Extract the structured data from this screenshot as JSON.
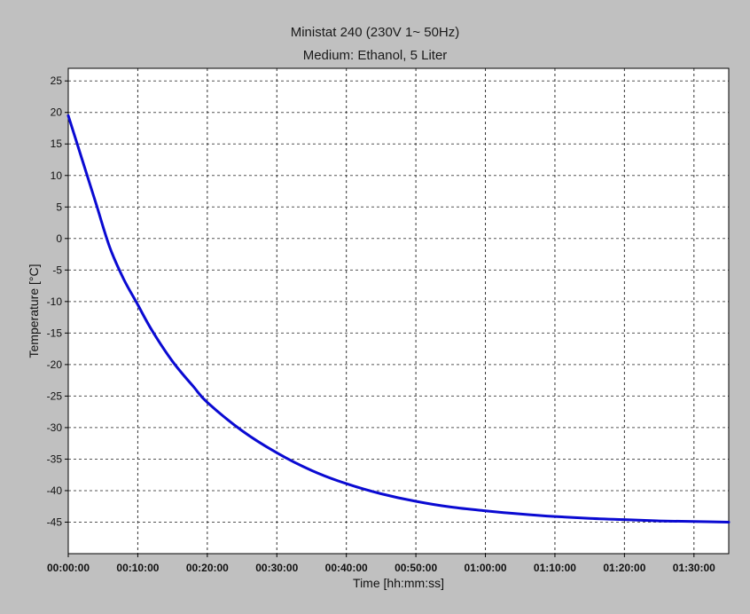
{
  "chart_data": {
    "type": "line",
    "title": "Ministat 240 (230V 1~ 50Hz)",
    "subtitle": "Medium: Ethanol, 5 Liter",
    "xlabel": "Time [hh:mm:ss]",
    "ylabel": "Temperature [°C]",
    "xlim_minutes": [
      0,
      95
    ],
    "ylim": [
      -50,
      27
    ],
    "x_ticks": [
      "00:00:00",
      "00:10:00",
      "00:20:00",
      "00:30:00",
      "00:40:00",
      "00:50:00",
      "01:00:00",
      "01:10:00",
      "01:20:00",
      "01:30:00"
    ],
    "y_ticks": [
      25,
      20,
      15,
      10,
      5,
      0,
      -5,
      -10,
      -15,
      -20,
      -25,
      -30,
      -35,
      -40,
      -45
    ],
    "grid": true,
    "series": [
      {
        "color": "#0a0ad2",
        "x": [
          "00:00:00",
          "00:02:00",
          "00:04:00",
          "00:06:00",
          "00:08:00",
          "00:10:00",
          "00:12:00",
          "00:15:00",
          "00:18:00",
          "00:20:00",
          "00:25:00",
          "00:30:00",
          "00:35:00",
          "00:40:00",
          "00:45:00",
          "00:50:00",
          "00:55:00",
          "01:00:00",
          "01:05:00",
          "01:10:00",
          "01:15:00",
          "01:20:00",
          "01:25:00",
          "01:30:00",
          "01:35:00"
        ],
        "y": [
          19.5,
          12.5,
          5.5,
          -1.5,
          -6.5,
          -10.5,
          -14.5,
          -19.5,
          -23.5,
          -26,
          -30.5,
          -34,
          -36.8,
          -38.9,
          -40.5,
          -41.7,
          -42.6,
          -43.2,
          -43.7,
          -44.1,
          -44.4,
          -44.6,
          -44.8,
          -44.9,
          -45
        ]
      }
    ]
  }
}
